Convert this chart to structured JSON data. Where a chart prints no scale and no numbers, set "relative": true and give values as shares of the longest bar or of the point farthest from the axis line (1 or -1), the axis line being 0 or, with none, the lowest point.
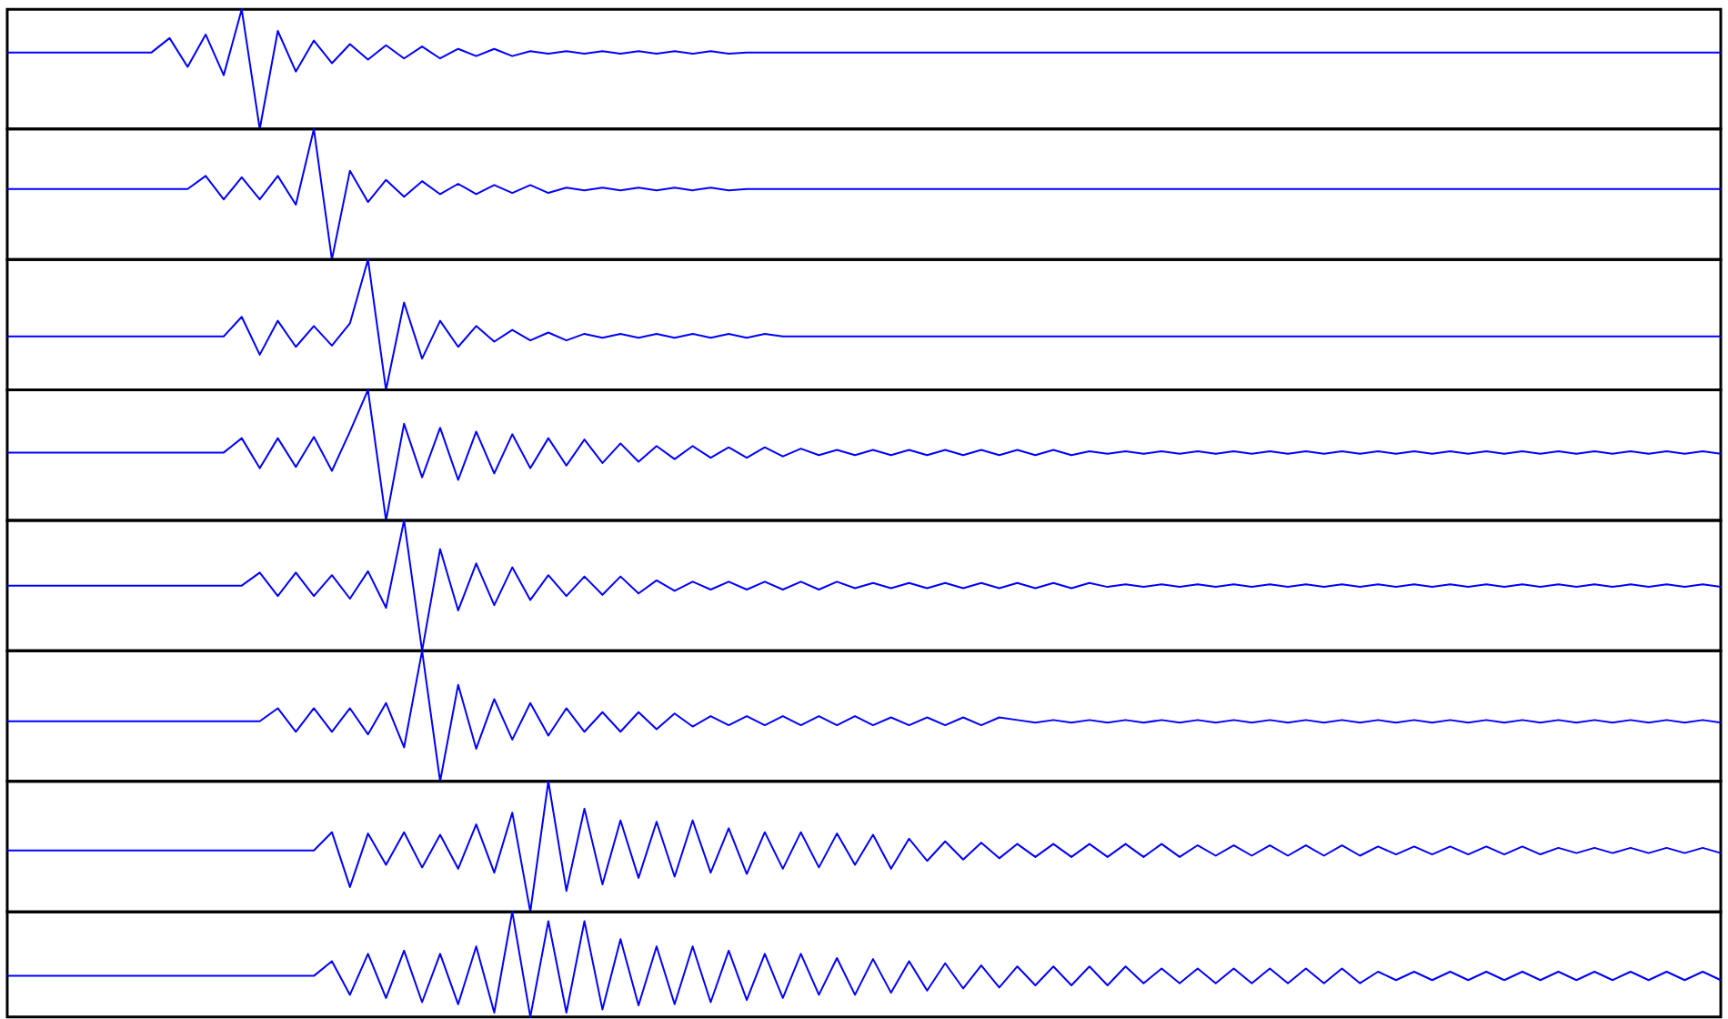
{
  "chart_data": [
    {
      "type": "line",
      "relative": true,
      "color": "#0000ff",
      "categories": [
        null,
        null,
        null,
        null,
        null,
        null,
        null,
        null,
        null,
        null,
        null,
        null,
        null,
        null,
        null,
        null,
        null,
        null,
        null,
        null,
        null,
        null,
        null,
        null,
        null,
        null,
        null,
        null,
        null,
        null,
        null,
        null,
        null,
        null,
        null,
        null,
        null,
        null,
        null,
        null,
        null,
        null,
        null,
        null,
        null,
        null,
        null,
        null,
        null,
        null,
        null,
        null,
        null,
        null,
        null,
        null,
        null,
        null,
        null,
        null,
        null,
        null,
        null,
        null,
        null,
        null,
        null,
        null,
        null,
        null,
        null,
        null,
        null,
        null,
        null,
        null,
        null,
        null,
        null,
        null,
        null,
        null,
        null,
        null,
        null,
        null,
        null,
        null,
        null,
        null,
        null,
        null,
        null,
        null,
        null,
        null
      ],
      "values": [
        0.64,
        0.64,
        0.64,
        0.64,
        0.64,
        0.64,
        0.64,
        0.64,
        0.64,
        0.76,
        0.52,
        0.79,
        0.45,
        1.0,
        0.0,
        0.82,
        0.48,
        0.74,
        0.55,
        0.71,
        0.58,
        0.7,
        0.59,
        0.69,
        0.59,
        0.67,
        0.61,
        0.67,
        0.61,
        0.65,
        0.63,
        0.65,
        0.63,
        0.65,
        0.63,
        0.65,
        0.63,
        0.65,
        0.63,
        0.65,
        0.63,
        0.64,
        0.64,
        0.64,
        0.64,
        0.64,
        0.64,
        0.64,
        0.64,
        0.64,
        0.64,
        0.64,
        0.64,
        0.64,
        0.64,
        0.64,
        0.64,
        0.64,
        0.64,
        0.64,
        0.64,
        0.64,
        0.64,
        0.64,
        0.64,
        0.64,
        0.64,
        0.64,
        0.64,
        0.64,
        0.64,
        0.64,
        0.64,
        0.64,
        0.64,
        0.64,
        0.64,
        0.64,
        0.64,
        0.64,
        0.64,
        0.64,
        0.64,
        0.64,
        0.64,
        0.64,
        0.64,
        0.64,
        0.64,
        0.64,
        0.64,
        0.64,
        0.64,
        0.64,
        0.64,
        0.64
      ]
    },
    {
      "type": "line",
      "relative": true,
      "color": "#0000ff",
      "categories": [
        null,
        null,
        null,
        null,
        null,
        null,
        null,
        null,
        null,
        null,
        null,
        null,
        null,
        null,
        null,
        null,
        null,
        null,
        null,
        null,
        null,
        null,
        null,
        null,
        null,
        null,
        null,
        null,
        null,
        null,
        null,
        null,
        null,
        null,
        null,
        null,
        null,
        null,
        null,
        null,
        null,
        null,
        null,
        null,
        null,
        null,
        null,
        null,
        null,
        null,
        null,
        null,
        null,
        null,
        null,
        null,
        null,
        null,
        null,
        null,
        null,
        null,
        null,
        null,
        null,
        null,
        null,
        null,
        null,
        null,
        null,
        null,
        null,
        null,
        null,
        null,
        null,
        null,
        null,
        null,
        null,
        null,
        null,
        null,
        null,
        null,
        null,
        null,
        null,
        null,
        null,
        null,
        null,
        null,
        null,
        null
      ],
      "values": [
        0.54,
        0.54,
        0.54,
        0.54,
        0.54,
        0.54,
        0.54,
        0.54,
        0.54,
        0.54,
        0.54,
        0.64,
        0.46,
        0.63,
        0.46,
        0.64,
        0.42,
        1.0,
        0.0,
        0.68,
        0.44,
        0.61,
        0.48,
        0.6,
        0.5,
        0.58,
        0.5,
        0.57,
        0.51,
        0.57,
        0.51,
        0.55,
        0.53,
        0.55,
        0.53,
        0.55,
        0.53,
        0.55,
        0.53,
        0.55,
        0.53,
        0.54,
        0.54,
        0.54,
        0.54,
        0.54,
        0.54,
        0.54,
        0.54,
        0.54,
        0.54,
        0.54,
        0.54,
        0.54,
        0.54,
        0.54,
        0.54,
        0.54,
        0.54,
        0.54,
        0.54,
        0.54,
        0.54,
        0.54,
        0.54,
        0.54,
        0.54,
        0.54,
        0.54,
        0.54,
        0.54,
        0.54,
        0.54,
        0.54,
        0.54,
        0.54,
        0.54,
        0.54,
        0.54,
        0.54,
        0.54,
        0.54,
        0.54,
        0.54,
        0.54,
        0.54,
        0.54,
        0.54,
        0.54,
        0.54,
        0.54,
        0.54,
        0.54,
        0.54,
        0.54,
        0.54
      ]
    },
    {
      "type": "line",
      "relative": true,
      "color": "#0000ff",
      "categories": [
        null,
        null,
        null,
        null,
        null,
        null,
        null,
        null,
        null,
        null,
        null,
        null,
        null,
        null,
        null,
        null,
        null,
        null,
        null,
        null,
        null,
        null,
        null,
        null,
        null,
        null,
        null,
        null,
        null,
        null,
        null,
        null,
        null,
        null,
        null,
        null,
        null,
        null,
        null,
        null,
        null,
        null,
        null,
        null,
        null,
        null,
        null,
        null,
        null,
        null,
        null,
        null,
        null,
        null,
        null,
        null,
        null,
        null,
        null,
        null,
        null,
        null,
        null,
        null,
        null,
        null,
        null,
        null,
        null,
        null,
        null,
        null,
        null,
        null,
        null,
        null,
        null,
        null,
        null,
        null,
        null,
        null,
        null,
        null,
        null,
        null,
        null,
        null,
        null,
        null,
        null,
        null,
        null,
        null,
        null,
        null
      ],
      "values": [
        0.41,
        0.41,
        0.41,
        0.41,
        0.41,
        0.41,
        0.41,
        0.41,
        0.41,
        0.41,
        0.41,
        0.41,
        0.41,
        0.56,
        0.27,
        0.53,
        0.33,
        0.49,
        0.34,
        0.51,
        1.0,
        0.0,
        0.67,
        0.24,
        0.53,
        0.33,
        0.49,
        0.37,
        0.46,
        0.38,
        0.44,
        0.38,
        0.43,
        0.4,
        0.43,
        0.4,
        0.43,
        0.4,
        0.43,
        0.4,
        0.43,
        0.4,
        0.43,
        0.41,
        0.41,
        0.41,
        0.41,
        0.41,
        0.41,
        0.41,
        0.41,
        0.41,
        0.41,
        0.41,
        0.41,
        0.41,
        0.41,
        0.41,
        0.41,
        0.41,
        0.41,
        0.41,
        0.41,
        0.41,
        0.41,
        0.41,
        0.41,
        0.41,
        0.41,
        0.41,
        0.41,
        0.41,
        0.41,
        0.41,
        0.41,
        0.41,
        0.41,
        0.41,
        0.41,
        0.41,
        0.41,
        0.41,
        0.41,
        0.41,
        0.41,
        0.41,
        0.41,
        0.41,
        0.41,
        0.41,
        0.41,
        0.41,
        0.41,
        0.41,
        0.41,
        0.41
      ]
    },
    {
      "type": "line",
      "relative": true,
      "color": "#0000ff",
      "categories": [
        null,
        null,
        null,
        null,
        null,
        null,
        null,
        null,
        null,
        null,
        null,
        null,
        null,
        null,
        null,
        null,
        null,
        null,
        null,
        null,
        null,
        null,
        null,
        null,
        null,
        null,
        null,
        null,
        null,
        null,
        null,
        null,
        null,
        null,
        null,
        null,
        null,
        null,
        null,
        null,
        null,
        null,
        null,
        null,
        null,
        null,
        null,
        null,
        null,
        null,
        null,
        null,
        null,
        null,
        null,
        null,
        null,
        null,
        null,
        null,
        null,
        null,
        null,
        null,
        null,
        null,
        null,
        null,
        null,
        null,
        null,
        null,
        null,
        null,
        null,
        null,
        null,
        null,
        null,
        null,
        null,
        null,
        null,
        null,
        null,
        null,
        null,
        null,
        null,
        null,
        null,
        null,
        null,
        null,
        null,
        null
      ],
      "values": [
        0.52,
        0.52,
        0.52,
        0.52,
        0.52,
        0.52,
        0.52,
        0.52,
        0.52,
        0.52,
        0.52,
        0.52,
        0.52,
        0.63,
        0.4,
        0.63,
        0.41,
        0.64,
        0.38,
        0.68,
        1.0,
        0.0,
        0.74,
        0.33,
        0.71,
        0.31,
        0.68,
        0.36,
        0.66,
        0.4,
        0.63,
        0.42,
        0.62,
        0.44,
        0.59,
        0.45,
        0.57,
        0.47,
        0.57,
        0.48,
        0.56,
        0.48,
        0.56,
        0.49,
        0.55,
        0.5,
        0.54,
        0.5,
        0.54,
        0.5,
        0.54,
        0.5,
        0.54,
        0.5,
        0.54,
        0.5,
        0.54,
        0.5,
        0.54,
        0.5,
        0.53,
        0.51,
        0.53,
        0.51,
        0.53,
        0.51,
        0.53,
        0.51,
        0.53,
        0.51,
        0.53,
        0.51,
        0.53,
        0.51,
        0.53,
        0.51,
        0.53,
        0.51,
        0.53,
        0.51,
        0.53,
        0.51,
        0.53,
        0.51,
        0.53,
        0.51,
        0.53,
        0.51,
        0.53,
        0.51,
        0.53,
        0.51,
        0.53,
        0.51,
        0.53,
        0.51
      ]
    },
    {
      "type": "line",
      "relative": true,
      "color": "#0000ff",
      "categories": [
        null,
        null,
        null,
        null,
        null,
        null,
        null,
        null,
        null,
        null,
        null,
        null,
        null,
        null,
        null,
        null,
        null,
        null,
        null,
        null,
        null,
        null,
        null,
        null,
        null,
        null,
        null,
        null,
        null,
        null,
        null,
        null,
        null,
        null,
        null,
        null,
        null,
        null,
        null,
        null,
        null,
        null,
        null,
        null,
        null,
        null,
        null,
        null,
        null,
        null,
        null,
        null,
        null,
        null,
        null,
        null,
        null,
        null,
        null,
        null,
        null,
        null,
        null,
        null,
        null,
        null,
        null,
        null,
        null,
        null,
        null,
        null,
        null,
        null,
        null,
        null,
        null,
        null,
        null,
        null,
        null,
        null,
        null,
        null,
        null,
        null,
        null,
        null,
        null,
        null,
        null,
        null,
        null,
        null,
        null,
        null
      ],
      "values": [
        0.5,
        0.5,
        0.5,
        0.5,
        0.5,
        0.5,
        0.5,
        0.5,
        0.5,
        0.5,
        0.5,
        0.5,
        0.5,
        0.5,
        0.6,
        0.42,
        0.6,
        0.42,
        0.58,
        0.4,
        0.61,
        0.33,
        1.0,
        0.0,
        0.78,
        0.31,
        0.67,
        0.35,
        0.64,
        0.39,
        0.58,
        0.42,
        0.57,
        0.43,
        0.57,
        0.44,
        0.54,
        0.46,
        0.53,
        0.47,
        0.53,
        0.47,
        0.53,
        0.47,
        0.53,
        0.47,
        0.53,
        0.48,
        0.52,
        0.48,
        0.52,
        0.48,
        0.52,
        0.48,
        0.52,
        0.48,
        0.52,
        0.48,
        0.52,
        0.48,
        0.52,
        0.49,
        0.51,
        0.49,
        0.51,
        0.49,
        0.51,
        0.49,
        0.51,
        0.49,
        0.51,
        0.49,
        0.51,
        0.49,
        0.51,
        0.49,
        0.51,
        0.49,
        0.51,
        0.49,
        0.51,
        0.49,
        0.51,
        0.49,
        0.51,
        0.49,
        0.51,
        0.49,
        0.51,
        0.49,
        0.51,
        0.49,
        0.51,
        0.49,
        0.51,
        0.49
      ]
    },
    {
      "type": "line",
      "relative": true,
      "color": "#0000ff",
      "categories": [
        null,
        null,
        null,
        null,
        null,
        null,
        null,
        null,
        null,
        null,
        null,
        null,
        null,
        null,
        null,
        null,
        null,
        null,
        null,
        null,
        null,
        null,
        null,
        null,
        null,
        null,
        null,
        null,
        null,
        null,
        null,
        null,
        null,
        null,
        null,
        null,
        null,
        null,
        null,
        null,
        null,
        null,
        null,
        null,
        null,
        null,
        null,
        null,
        null,
        null,
        null,
        null,
        null,
        null,
        null,
        null,
        null,
        null,
        null,
        null,
        null,
        null,
        null,
        null,
        null,
        null,
        null,
        null,
        null,
        null,
        null,
        null,
        null,
        null,
        null,
        null,
        null,
        null,
        null,
        null,
        null,
        null,
        null,
        null,
        null,
        null,
        null,
        null,
        null,
        null,
        null,
        null,
        null,
        null,
        null,
        null
      ],
      "values": [
        0.46,
        0.46,
        0.46,
        0.46,
        0.46,
        0.46,
        0.46,
        0.46,
        0.46,
        0.46,
        0.46,
        0.46,
        0.46,
        0.46,
        0.46,
        0.56,
        0.38,
        0.56,
        0.38,
        0.56,
        0.36,
        0.6,
        0.26,
        1.0,
        0.0,
        0.74,
        0.25,
        0.63,
        0.32,
        0.6,
        0.35,
        0.56,
        0.38,
        0.53,
        0.38,
        0.53,
        0.4,
        0.52,
        0.42,
        0.5,
        0.43,
        0.5,
        0.43,
        0.5,
        0.43,
        0.5,
        0.43,
        0.5,
        0.43,
        0.49,
        0.43,
        0.49,
        0.43,
        0.49,
        0.43,
        0.49,
        0.47,
        0.45,
        0.47,
        0.45,
        0.47,
        0.45,
        0.47,
        0.45,
        0.47,
        0.45,
        0.47,
        0.45,
        0.47,
        0.45,
        0.47,
        0.45,
        0.47,
        0.45,
        0.47,
        0.45,
        0.47,
        0.45,
        0.47,
        0.45,
        0.47,
        0.45,
        0.47,
        0.45,
        0.47,
        0.45,
        0.47,
        0.45,
        0.47,
        0.45,
        0.47,
        0.45,
        0.47,
        0.45,
        0.47,
        0.45
      ]
    },
    {
      "type": "line",
      "relative": true,
      "color": "#0000ff",
      "categories": [
        null,
        null,
        null,
        null,
        null,
        null,
        null,
        null,
        null,
        null,
        null,
        null,
        null,
        null,
        null,
        null,
        null,
        null,
        null,
        null,
        null,
        null,
        null,
        null,
        null,
        null,
        null,
        null,
        null,
        null,
        null,
        null,
        null,
        null,
        null,
        null,
        null,
        null,
        null,
        null,
        null,
        null,
        null,
        null,
        null,
        null,
        null,
        null,
        null,
        null,
        null,
        null,
        null,
        null,
        null,
        null,
        null,
        null,
        null,
        null,
        null,
        null,
        null,
        null,
        null,
        null,
        null,
        null,
        null,
        null,
        null,
        null,
        null,
        null,
        null,
        null,
        null,
        null,
        null,
        null,
        null,
        null,
        null,
        null,
        null,
        null,
        null,
        null,
        null,
        null,
        null,
        null,
        null,
        null,
        null,
        null
      ],
      "values": [
        0.47,
        0.47,
        0.47,
        0.47,
        0.47,
        0.47,
        0.47,
        0.47,
        0.47,
        0.47,
        0.47,
        0.47,
        0.47,
        0.47,
        0.47,
        0.47,
        0.47,
        0.47,
        0.61,
        0.19,
        0.6,
        0.36,
        0.61,
        0.34,
        0.59,
        0.33,
        0.67,
        0.3,
        0.76,
        0.0,
        1.0,
        0.16,
        0.79,
        0.21,
        0.7,
        0.26,
        0.69,
        0.27,
        0.7,
        0.3,
        0.64,
        0.29,
        0.61,
        0.33,
        0.61,
        0.34,
        0.6,
        0.36,
        0.59,
        0.33,
        0.56,
        0.39,
        0.54,
        0.4,
        0.53,
        0.41,
        0.52,
        0.42,
        0.52,
        0.42,
        0.52,
        0.42,
        0.52,
        0.42,
        0.52,
        0.42,
        0.51,
        0.43,
        0.51,
        0.43,
        0.51,
        0.43,
        0.51,
        0.43,
        0.51,
        0.43,
        0.5,
        0.44,
        0.5,
        0.44,
        0.5,
        0.44,
        0.5,
        0.44,
        0.5,
        0.44,
        0.49,
        0.45,
        0.49,
        0.45,
        0.49,
        0.45,
        0.49,
        0.45,
        0.49,
        0.45
      ]
    },
    {
      "type": "line",
      "relative": true,
      "color": "#0000ff",
      "categories": [
        null,
        null,
        null,
        null,
        null,
        null,
        null,
        null,
        null,
        null,
        null,
        null,
        null,
        null,
        null,
        null,
        null,
        null,
        null,
        null,
        null,
        null,
        null,
        null,
        null,
        null,
        null,
        null,
        null,
        null,
        null,
        null,
        null,
        null,
        null,
        null,
        null,
        null,
        null,
        null,
        null,
        null,
        null,
        null,
        null,
        null,
        null,
        null,
        null,
        null,
        null,
        null,
        null,
        null,
        null,
        null,
        null,
        null,
        null,
        null,
        null,
        null,
        null,
        null,
        null,
        null,
        null,
        null,
        null,
        null,
        null,
        null,
        null,
        null,
        null,
        null,
        null,
        null,
        null,
        null,
        null,
        null,
        null,
        null,
        null,
        null,
        null,
        null,
        null,
        null,
        null,
        null,
        null,
        null,
        null,
        null
      ],
      "values": [
        0.39,
        0.39,
        0.39,
        0.39,
        0.39,
        0.39,
        0.39,
        0.39,
        0.39,
        0.39,
        0.39,
        0.39,
        0.39,
        0.39,
        0.39,
        0.39,
        0.39,
        0.39,
        0.53,
        0.21,
        0.6,
        0.18,
        0.63,
        0.14,
        0.6,
        0.12,
        0.67,
        0.04,
        1.0,
        0.0,
        0.91,
        0.04,
        0.91,
        0.07,
        0.74,
        0.11,
        0.67,
        0.12,
        0.67,
        0.14,
        0.63,
        0.16,
        0.6,
        0.18,
        0.6,
        0.21,
        0.56,
        0.21,
        0.55,
        0.23,
        0.53,
        0.25,
        0.51,
        0.27,
        0.49,
        0.28,
        0.48,
        0.3,
        0.48,
        0.3,
        0.48,
        0.3,
        0.48,
        0.32,
        0.46,
        0.32,
        0.46,
        0.32,
        0.46,
        0.32,
        0.46,
        0.32,
        0.46,
        0.32,
        0.46,
        0.32,
        0.43,
        0.35,
        0.43,
        0.35,
        0.43,
        0.35,
        0.43,
        0.35,
        0.43,
        0.35,
        0.43,
        0.35,
        0.43,
        0.35,
        0.43,
        0.35,
        0.43,
        0.35,
        0.43,
        0.35
      ]
    }
  ]
}
